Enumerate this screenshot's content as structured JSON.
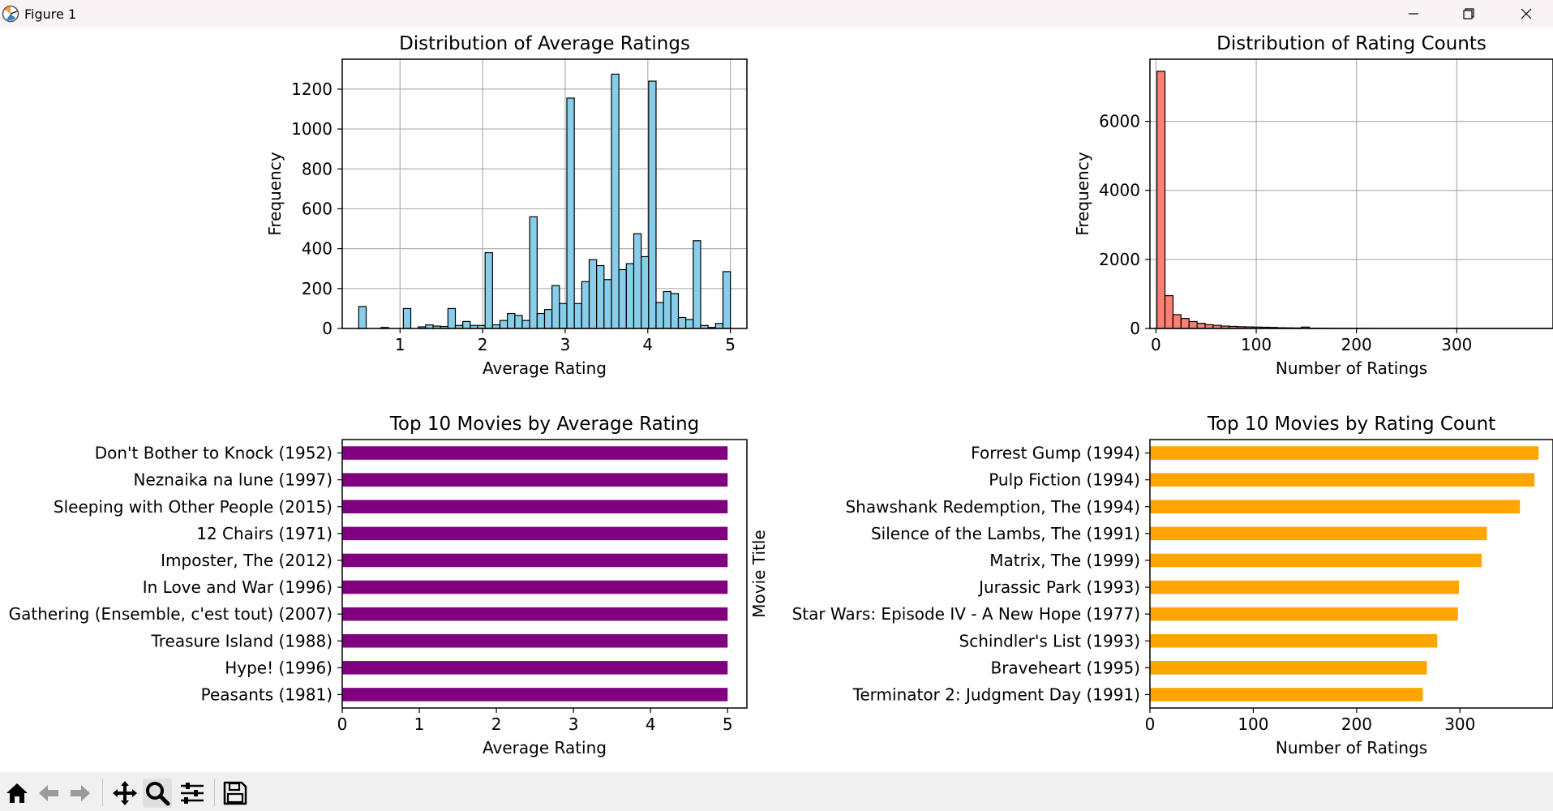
{
  "window": {
    "title": "Figure 1"
  },
  "toolbar": {
    "tools": [
      "home-icon",
      "back-arrow-icon",
      "forward-arrow-icon",
      "pan-icon",
      "zoom-icon",
      "configure-subplots-icon",
      "save-icon"
    ],
    "active_tool": "zoom-icon"
  },
  "colors": {
    "hist_ratings": "#87ceeb",
    "hist_counts": "#fa8072",
    "bar_avg": "#800080",
    "bar_count": "#ffa500",
    "grid": "#b0b0b0",
    "edge": "#000000"
  },
  "chart_data": [
    {
      "type": "bar",
      "title": "Distribution of Average Ratings",
      "xlabel": "Average Rating",
      "ylabel": "Frequency",
      "grid": true,
      "x_range": [
        0.5,
        5.0
      ],
      "xlim": [
        0.3,
        5.2
      ],
      "ylim": [
        0,
        1350
      ],
      "xticks": [
        1,
        2,
        3,
        4,
        5
      ],
      "yticks": [
        0,
        200,
        400,
        600,
        800,
        1000,
        1200
      ],
      "bin_count": 50,
      "values": [
        110,
        0,
        0,
        5,
        0,
        0,
        100,
        0,
        8,
        18,
        12,
        10,
        100,
        15,
        35,
        15,
        15,
        380,
        18,
        40,
        75,
        65,
        40,
        560,
        75,
        95,
        215,
        125,
        1155,
        125,
        235,
        345,
        315,
        245,
        1275,
        295,
        325,
        475,
        360,
        1240,
        130,
        185,
        175,
        55,
        45,
        440,
        15,
        5,
        25,
        285
      ]
    },
    {
      "type": "bar",
      "title": "Distribution of Rating Counts",
      "xlabel": "Number of Ratings",
      "ylabel": "Frequency",
      "grid": true,
      "x_range": [
        1,
        401
      ],
      "xlim": [
        -6,
        396
      ],
      "ylim": [
        0,
        7800
      ],
      "xticks": [
        0,
        100,
        200,
        300
      ],
      "yticks": [
        0,
        2000,
        4000,
        6000
      ],
      "bin_count": 50,
      "values": [
        7450,
        950,
        400,
        290,
        200,
        150,
        110,
        90,
        70,
        60,
        50,
        45,
        40,
        35,
        30,
        20,
        18,
        15,
        40,
        10,
        8,
        6,
        5,
        4,
        4,
        3,
        3,
        2,
        2,
        2,
        2,
        1,
        1,
        1,
        1,
        1,
        1,
        1,
        1,
        1,
        1,
        1,
        1,
        1,
        1,
        1,
        1,
        1,
        1,
        1
      ]
    },
    {
      "type": "bar",
      "orientation": "horizontal",
      "title": "Top 10 Movies by Average Rating",
      "xlabel": "Average Rating",
      "ylabel": "Movie Title",
      "grid": false,
      "xlim": [
        0,
        5.25
      ],
      "xticks": [
        0,
        1,
        2,
        3,
        4,
        5
      ],
      "categories": [
        "Don't Bother to Knock (1952)",
        "Neznaika na lune (1997)",
        "Sleeping with Other People (2015)",
        "12 Chairs (1971)",
        "Imposter, The (2012)",
        "In Love and War (1996)",
        "Gathering (Ensemble, c'est tout) (2007)",
        "Treasure Island (1988)",
        "Hype! (1996)",
        "Peasants (1981)"
      ],
      "values": [
        5.0,
        5.0,
        5.0,
        5.0,
        5.0,
        5.0,
        5.0,
        5.0,
        5.0,
        5.0
      ]
    },
    {
      "type": "bar",
      "orientation": "horizontal",
      "title": "Top 10 Movies by Rating Count",
      "xlabel": "Number of Ratings",
      "ylabel": "",
      "grid": false,
      "xlim": [
        0,
        390
      ],
      "xticks": [
        0,
        100,
        200,
        300
      ],
      "categories": [
        "Forrest Gump (1994)",
        "Pulp Fiction (1994)",
        "Shawshank Redemption, The (1994)",
        "Silence of the Lambs, The (1991)",
        "Matrix, The (1999)",
        "Jurassic Park (1993)",
        "Star Wars: Episode IV - A New Hope (1977)",
        "Schindler's List (1993)",
        "Braveheart (1995)",
        "Terminator 2: Judgment Day (1991)"
      ],
      "values": [
        376,
        372,
        358,
        326,
        321,
        299,
        298,
        278,
        268,
        264
      ]
    }
  ]
}
